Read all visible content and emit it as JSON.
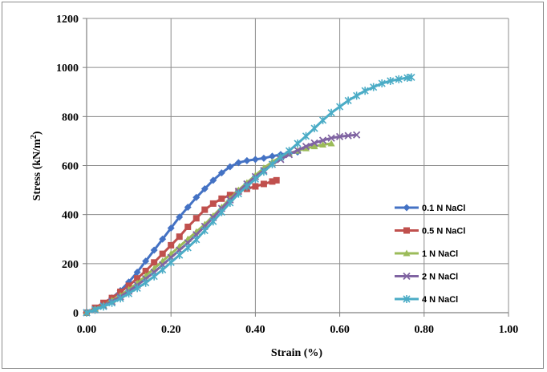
{
  "chart_data": {
    "type": "line",
    "xlabel": "Strain (%)",
    "ylabel_main": "Stress (kN/m",
    "ylabel_sup": "2",
    "ylabel_close": ")",
    "xlim": [
      0,
      1.0
    ],
    "ylim": [
      0,
      1200
    ],
    "x_ticks": [
      0,
      0.2,
      0.4,
      0.6,
      0.8,
      1.0
    ],
    "x_tick_labels": [
      "0.00",
      "0.20",
      "0.40",
      "0.60",
      "0.80",
      "1.00"
    ],
    "y_ticks": [
      0,
      200,
      400,
      600,
      800,
      1000,
      1200
    ],
    "y_tick_labels": [
      "0",
      "200",
      "400",
      "600",
      "800",
      "1000",
      "1200"
    ],
    "grid": true,
    "legend_position": "right",
    "series": [
      {
        "name": "0.1 N NaCl",
        "color": "#4472C4",
        "marker": "diamond",
        "x": [
          0,
          0.02,
          0.04,
          0.06,
          0.08,
          0.1,
          0.12,
          0.14,
          0.16,
          0.18,
          0.2,
          0.22,
          0.24,
          0.26,
          0.28,
          0.3,
          0.32,
          0.34,
          0.36,
          0.38,
          0.4,
          0.42,
          0.44,
          0.46,
          0.48,
          0.5
        ],
        "y": [
          0,
          15,
          35,
          60,
          90,
          125,
          165,
          210,
          255,
          300,
          345,
          390,
          430,
          470,
          505,
          540,
          570,
          595,
          612,
          620,
          625,
          630,
          638,
          645,
          650,
          655
        ]
      },
      {
        "name": "0.5 N NaCl",
        "color": "#C0504D",
        "marker": "square",
        "x": [
          0,
          0.02,
          0.04,
          0.06,
          0.08,
          0.1,
          0.12,
          0.14,
          0.16,
          0.18,
          0.2,
          0.22,
          0.24,
          0.26,
          0.28,
          0.3,
          0.32,
          0.34,
          0.36,
          0.38,
          0.4,
          0.42,
          0.44,
          0.45
        ],
        "y": [
          0,
          20,
          40,
          60,
          85,
          110,
          140,
          170,
          205,
          240,
          275,
          310,
          350,
          385,
          420,
          445,
          465,
          480,
          495,
          505,
          515,
          525,
          535,
          540
        ]
      },
      {
        "name": "1 N NaCl",
        "color": "#9BBB59",
        "marker": "triangle",
        "x": [
          0,
          0.02,
          0.04,
          0.06,
          0.08,
          0.1,
          0.12,
          0.14,
          0.16,
          0.18,
          0.2,
          0.22,
          0.24,
          0.26,
          0.28,
          0.3,
          0.32,
          0.34,
          0.36,
          0.38,
          0.4,
          0.42,
          0.44,
          0.46,
          0.48,
          0.5,
          0.52,
          0.54,
          0.56,
          0.58
        ],
        "y": [
          0,
          15,
          30,
          50,
          70,
          95,
          120,
          150,
          180,
          210,
          240,
          270,
          300,
          330,
          360,
          395,
          430,
          465,
          500,
          530,
          560,
          590,
          615,
          635,
          650,
          660,
          670,
          678,
          685,
          690
        ]
      },
      {
        "name": "2 N NaCl",
        "color": "#8064A2",
        "marker": "x",
        "x": [
          0,
          0.02,
          0.04,
          0.06,
          0.08,
          0.1,
          0.12,
          0.14,
          0.16,
          0.18,
          0.2,
          0.22,
          0.24,
          0.26,
          0.28,
          0.3,
          0.32,
          0.34,
          0.36,
          0.38,
          0.4,
          0.42,
          0.44,
          0.46,
          0.48,
          0.5,
          0.52,
          0.54,
          0.56,
          0.58,
          0.6,
          0.62,
          0.64
        ],
        "y": [
          0,
          12,
          28,
          45,
          65,
          88,
          112,
          138,
          165,
          195,
          225,
          255,
          285,
          318,
          352,
          388,
          425,
          460,
          495,
          525,
          555,
          580,
          605,
          625,
          645,
          662,
          678,
          692,
          703,
          712,
          718,
          722,
          725
        ]
      },
      {
        "name": "4 N NaCl",
        "color": "#4BACC6",
        "marker": "star",
        "x": [
          0,
          0.02,
          0.04,
          0.06,
          0.08,
          0.1,
          0.12,
          0.14,
          0.16,
          0.18,
          0.2,
          0.22,
          0.24,
          0.26,
          0.28,
          0.3,
          0.32,
          0.34,
          0.36,
          0.38,
          0.4,
          0.42,
          0.44,
          0.46,
          0.48,
          0.5,
          0.52,
          0.54,
          0.56,
          0.58,
          0.6,
          0.62,
          0.64,
          0.66,
          0.68,
          0.7,
          0.72,
          0.74,
          0.76,
          0.77
        ],
        "y": [
          0,
          12,
          25,
          40,
          58,
          78,
          100,
          122,
          148,
          175,
          205,
          235,
          265,
          298,
          335,
          372,
          410,
          448,
          485,
          515,
          545,
          575,
          605,
          635,
          660,
          690,
          720,
          752,
          785,
          815,
          840,
          865,
          885,
          905,
          920,
          935,
          945,
          952,
          958,
          960
        ]
      }
    ]
  }
}
